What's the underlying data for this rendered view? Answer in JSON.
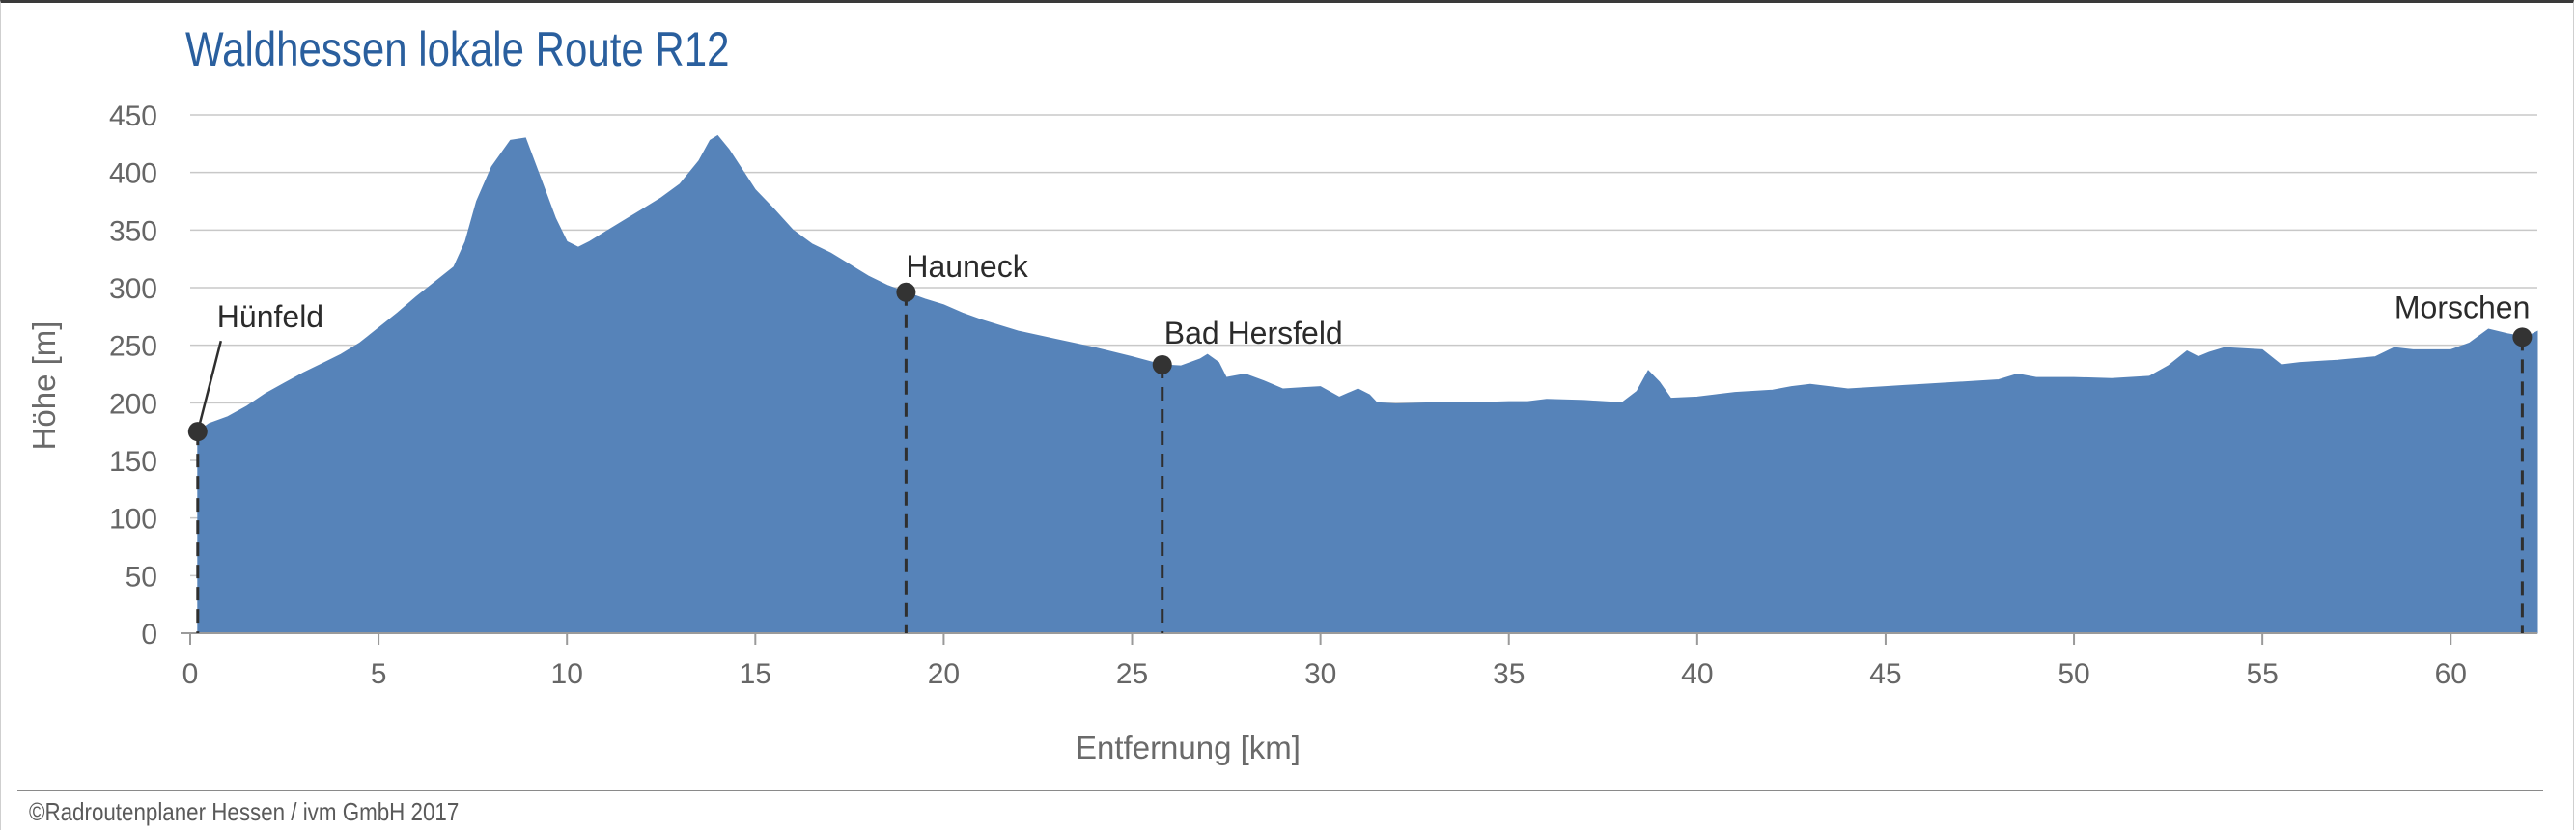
{
  "chart_data": {
    "type": "area",
    "title": "Waldhessen lokale Route R12",
    "xlabel": "Entfernung [km]",
    "ylabel": "Höhe [m]",
    "xlim": [
      0,
      62.3
    ],
    "ylim": [
      0,
      450
    ],
    "x_ticks": [
      0,
      5,
      10,
      15,
      20,
      25,
      30,
      35,
      40,
      45,
      50,
      55,
      60
    ],
    "y_ticks": [
      0,
      50,
      100,
      150,
      200,
      250,
      300,
      350,
      400,
      450
    ],
    "grid": true,
    "fill_color": "#5683b9",
    "series": [
      {
        "x": [
          0.2,
          0.5,
          1.0,
          1.5,
          2.0,
          2.5,
          3.0,
          3.5,
          4.0,
          4.5,
          5.0,
          5.5,
          6.0,
          6.5,
          7.0,
          7.3,
          7.6,
          8.0,
          8.5,
          8.9,
          9.3,
          9.7,
          10.0,
          10.3,
          10.6,
          11.0,
          11.5,
          12.0,
          12.5,
          13.0,
          13.5,
          13.8,
          14.0,
          14.3,
          14.7,
          15.0,
          15.5,
          16.0,
          16.5,
          17.0,
          17.5,
          18.0,
          18.5,
          19.0,
          19.5,
          20.0,
          20.5,
          21.0,
          21.5,
          22.0,
          23.0,
          24.0,
          25.0,
          25.8,
          26.3,
          26.8,
          27.0,
          27.3,
          27.5,
          28.0,
          28.5,
          29.0,
          29.5,
          30.0,
          30.5,
          31.0,
          31.3,
          31.5,
          32.0,
          33.0,
          34.0,
          35.0,
          35.5,
          36.0,
          37.0,
          38.0,
          38.4,
          38.7,
          39.0,
          39.3,
          40.0,
          40.5,
          41.0,
          42.0,
          42.5,
          43.0,
          44.0,
          45.0,
          45.5,
          46.0,
          47.0,
          48.0,
          48.5,
          49.0,
          50.0,
          51.0,
          52.0,
          52.5,
          53.0,
          53.3,
          53.6,
          54.0,
          55.0,
          55.5,
          56.0,
          57.0,
          58.0,
          58.5,
          59.0,
          60.0,
          60.5,
          61.0,
          61.5,
          62.0,
          62.3
        ],
        "y": [
          175,
          182,
          188,
          197,
          208,
          217,
          226,
          234,
          242,
          252,
          265,
          278,
          292,
          305,
          318,
          340,
          375,
          405,
          428,
          430,
          395,
          360,
          340,
          335,
          340,
          348,
          358,
          368,
          378,
          390,
          410,
          428,
          432,
          420,
          400,
          385,
          368,
          350,
          338,
          330,
          320,
          310,
          302,
          296,
          290,
          285,
          278,
          272,
          267,
          262,
          255,
          248,
          240,
          233,
          232,
          238,
          242,
          235,
          222,
          225,
          219,
          212,
          213,
          214,
          205,
          212,
          207,
          200,
          199,
          200,
          200,
          201,
          201,
          203,
          202,
          200,
          210,
          228,
          218,
          204,
          205,
          207,
          209,
          211,
          214,
          216,
          212,
          214,
          215,
          216,
          218,
          220,
          225,
          222,
          222,
          221,
          223,
          232,
          245,
          240,
          244,
          248,
          246,
          233,
          235,
          237,
          240,
          248,
          246,
          246,
          252,
          264,
          260,
          257,
          262
        ]
      }
    ],
    "annotations": [
      {
        "label": "Hünfeld",
        "x": 0.2,
        "y": 175
      },
      {
        "label": "Hauneck",
        "x": 19.0,
        "y": 296
      },
      {
        "label": "Bad Hersfeld",
        "x": 25.8,
        "y": 233
      },
      {
        "label": "Morschen",
        "x": 61.9,
        "y": 257
      }
    ]
  },
  "footer": {
    "copyright": "©Radroutenplaner Hessen / ivm GmbH 2017"
  }
}
